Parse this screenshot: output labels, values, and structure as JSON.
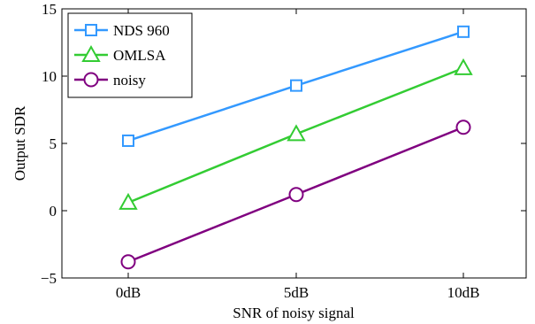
{
  "chart_data": {
    "type": "line",
    "categories": [
      "0dB",
      "5dB",
      "10dB"
    ],
    "xlabel": "SNR of noisy signal",
    "ylabel": "Output SDR",
    "ylim": [
      -5,
      15
    ],
    "yticks": [
      -5,
      0,
      5,
      10,
      15
    ],
    "ytick_labels": [
      "−5",
      "0",
      "5",
      "10",
      "15"
    ],
    "grid": false,
    "legend_position": "top-left",
    "series": [
      {
        "name": "NDS 960",
        "values": [
          5.2,
          9.3,
          13.3
        ],
        "color": "#3399ff",
        "marker": "square"
      },
      {
        "name": "OMLSA",
        "values": [
          0.6,
          5.7,
          10.6
        ],
        "color": "#33cc33",
        "marker": "triangle"
      },
      {
        "name": "noisy",
        "values": [
          -3.8,
          1.2,
          6.2
        ],
        "color": "#800080",
        "marker": "circle"
      }
    ]
  }
}
